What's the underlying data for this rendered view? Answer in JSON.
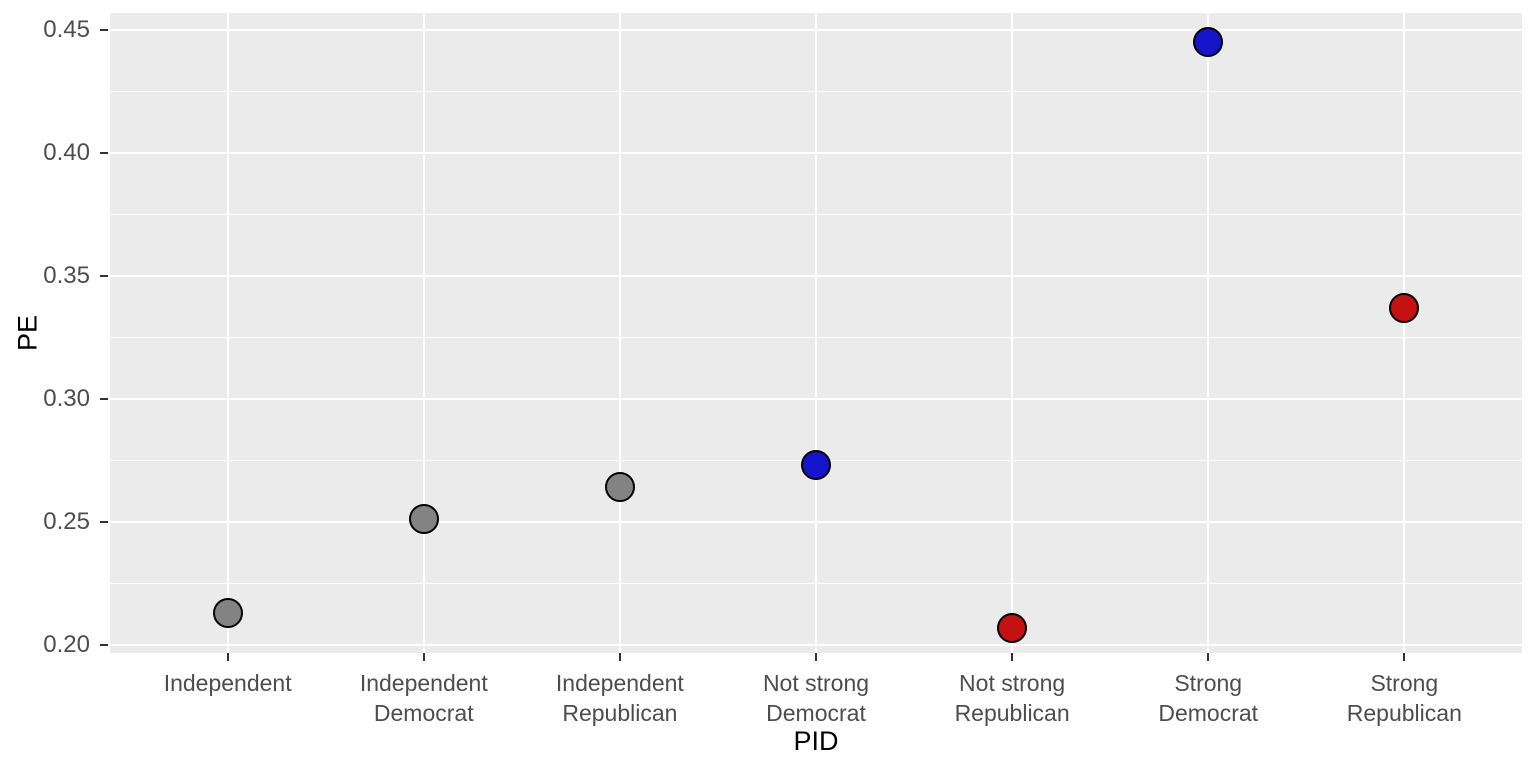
{
  "chart_data": {
    "type": "scatter",
    "title": "",
    "xlabel": "PID",
    "ylabel": "PE",
    "categories": [
      "Independent",
      "Independent Democrat",
      "Independent Republican",
      "Not strong Democrat",
      "Not strong Republican",
      "Strong Democrat",
      "Strong Republican"
    ],
    "category_label_lines": [
      [
        "Independent"
      ],
      [
        "Independent",
        "Democrat"
      ],
      [
        "Independent",
        "Republican"
      ],
      [
        "Not strong",
        "Democrat"
      ],
      [
        "Not strong",
        "Republican"
      ],
      [
        "Strong",
        "Democrat"
      ],
      [
        "Strong",
        "Republican"
      ]
    ],
    "values": [
      0.213,
      0.251,
      0.264,
      0.273,
      0.207,
      0.445,
      0.337
    ],
    "point_fill_colors": [
      "#838383",
      "#838383",
      "#838383",
      "#1515CB",
      "#C41111",
      "#1515CB",
      "#C41111"
    ],
    "point_outline_color": "#000000",
    "ylim": [
      0.1967,
      0.4569
    ],
    "yticks": [
      0.2,
      0.25,
      0.3,
      0.35,
      0.4,
      0.45
    ],
    "ytick_labels": [
      "0.20",
      "0.25",
      "0.30",
      "0.35",
      "0.40",
      "0.45"
    ],
    "yticks_minor": [
      0.225,
      0.275,
      0.325,
      0.375,
      0.425
    ],
    "grid": true,
    "legend_position": "none",
    "colors": {
      "panel_bg": "#EBEBEB",
      "grid": "#FFFFFF",
      "tick_label": "#4D4D4D",
      "axis_title": "#000000",
      "tick_mark": "#333333"
    }
  }
}
